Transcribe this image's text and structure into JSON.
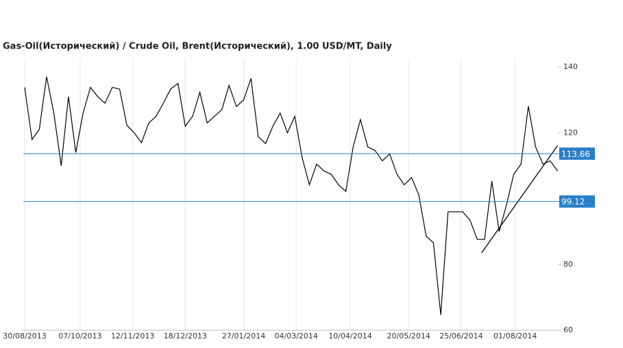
{
  "chart_data": {
    "type": "line",
    "title": "Gas-Oil(Исторический) / Crude Oil, Brent(Исторический), 1.00 USD/MT, Daily",
    "x": [
      "30/08/2013",
      "04/09/2013",
      "09/09/2013",
      "14/09/2013",
      "19/09/2013",
      "24/09/2013",
      "29/09/2013",
      "04/10/2013",
      "09/10/2013",
      "14/10/2013",
      "19/10/2013",
      "24/10/2013",
      "29/10/2013",
      "03/11/2013",
      "08/11/2013",
      "13/11/2013",
      "18/11/2013",
      "23/11/2013",
      "28/11/2013",
      "03/12/2013",
      "08/12/2013",
      "13/12/2013",
      "18/12/2013",
      "23/12/2013",
      "28/12/2013",
      "02/01/2014",
      "07/01/2014",
      "12/01/2014",
      "17/01/2014",
      "22/01/2014",
      "27/01/2014",
      "01/02/2014",
      "06/02/2014",
      "11/02/2014",
      "16/02/2014",
      "21/02/2014",
      "26/02/2014",
      "03/03/2014",
      "08/03/2014",
      "13/03/2014",
      "18/03/2014",
      "23/03/2014",
      "28/03/2014",
      "02/04/2014",
      "07/04/2014",
      "12/04/2014",
      "17/04/2014",
      "22/04/2014",
      "27/04/2014",
      "02/05/2014",
      "07/05/2014",
      "12/05/2014",
      "17/05/2014",
      "22/05/2014",
      "27/05/2014",
      "01/06/2014",
      "06/06/2014",
      "11/06/2014",
      "16/06/2014",
      "21/06/2014",
      "26/06/2014",
      "01/07/2014",
      "06/07/2014",
      "11/07/2014",
      "16/07/2014",
      "21/07/2014",
      "26/07/2014",
      "31/07/2014",
      "05/08/2014",
      "10/08/2014",
      "15/08/2014",
      "20/08/2014",
      "25/08/2014",
      "30/08/2014"
    ],
    "series": [
      {
        "color": "#000000",
        "values": [
          133.8,
          118,
          121,
          137,
          126,
          110,
          131,
          114,
          126,
          133.8,
          131,
          129,
          133.8,
          133.3,
          122.3,
          120,
          117,
          123,
          125,
          129,
          133.3,
          135,
          122,
          125,
          132.3,
          123,
          125,
          127,
          134.4,
          128,
          130,
          136.5,
          118.8,
          116.7,
          122,
          126,
          120,
          125,
          112.6,
          104.2,
          110.5,
          108.4,
          107.4,
          104.2,
          102.2,
          115.7,
          124,
          115.7,
          114.6,
          111.5,
          113.6,
          107.4,
          104.2,
          106.4,
          101.1,
          88.6,
          86.6,
          64.7,
          96,
          96,
          96,
          93.5,
          87.6,
          87.6,
          105.3,
          90,
          98,
          107.4,
          110.5,
          128.1,
          115.7,
          110.5,
          111.5,
          108.4
        ]
      }
    ],
    "xlim": [
      "30/08/2013",
      "30/08/2014"
    ],
    "xticks": [
      "30/08/2013",
      "07/10/2013",
      "12/11/2013",
      "18/12/2013",
      "27/01/2014",
      "04/03/2014",
      "10/04/2014",
      "20/05/2014",
      "25/06/2014",
      "01/08/2014"
    ],
    "ylim": [
      60,
      140
    ],
    "yticks": [
      60,
      80,
      120,
      140
    ],
    "levels": [
      {
        "value": 113.66,
        "color": "#2a7fc9"
      },
      {
        "value": 99.12,
        "color": "#2a7fc9"
      }
    ],
    "trendline": {
      "x": [
        "09/07/2014",
        "30/08/2014"
      ],
      "values": [
        83.5,
        116.1
      ],
      "color": "#000000"
    },
    "grid": true
  }
}
